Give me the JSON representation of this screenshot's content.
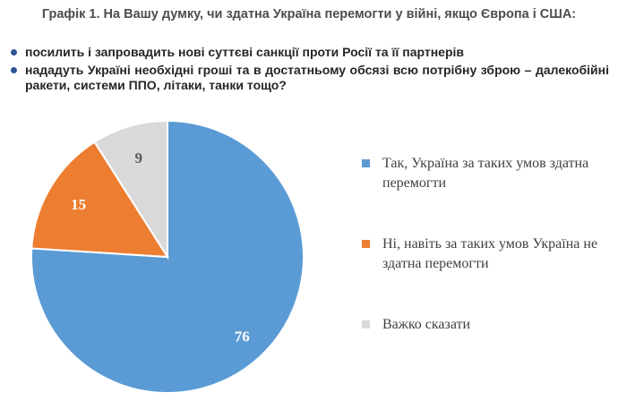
{
  "title": "Графік 1. На Вашу думку, чи здатна Україна перемогти у війні, якщо Європа і США:",
  "conditions": [
    "посилить і запровадить нові суттєві санкції проти Росії та її партнерів",
    "нададуть Україні необхідні гроші та в достатньому обсязі всю потрібну зброю – далекобійні ракети, системи ППО, літаки, танки тощо?"
  ],
  "colors": {
    "bullet": "#2f5597"
  },
  "chart_data": {
    "type": "pie",
    "title": "",
    "slices": [
      {
        "label": "Так, Україна за таких умов здатна перемогти",
        "value": 76,
        "color": "#5b9bd5"
      },
      {
        "label": "Ні, навіть за таких умов Україна не здатна перемогти",
        "value": 15,
        "color": "#ed7d31"
      },
      {
        "label": "Важко сказати",
        "value": 9,
        "color": "#d9d9d9"
      }
    ],
    "legend_position": "right",
    "data_labels": true
  }
}
